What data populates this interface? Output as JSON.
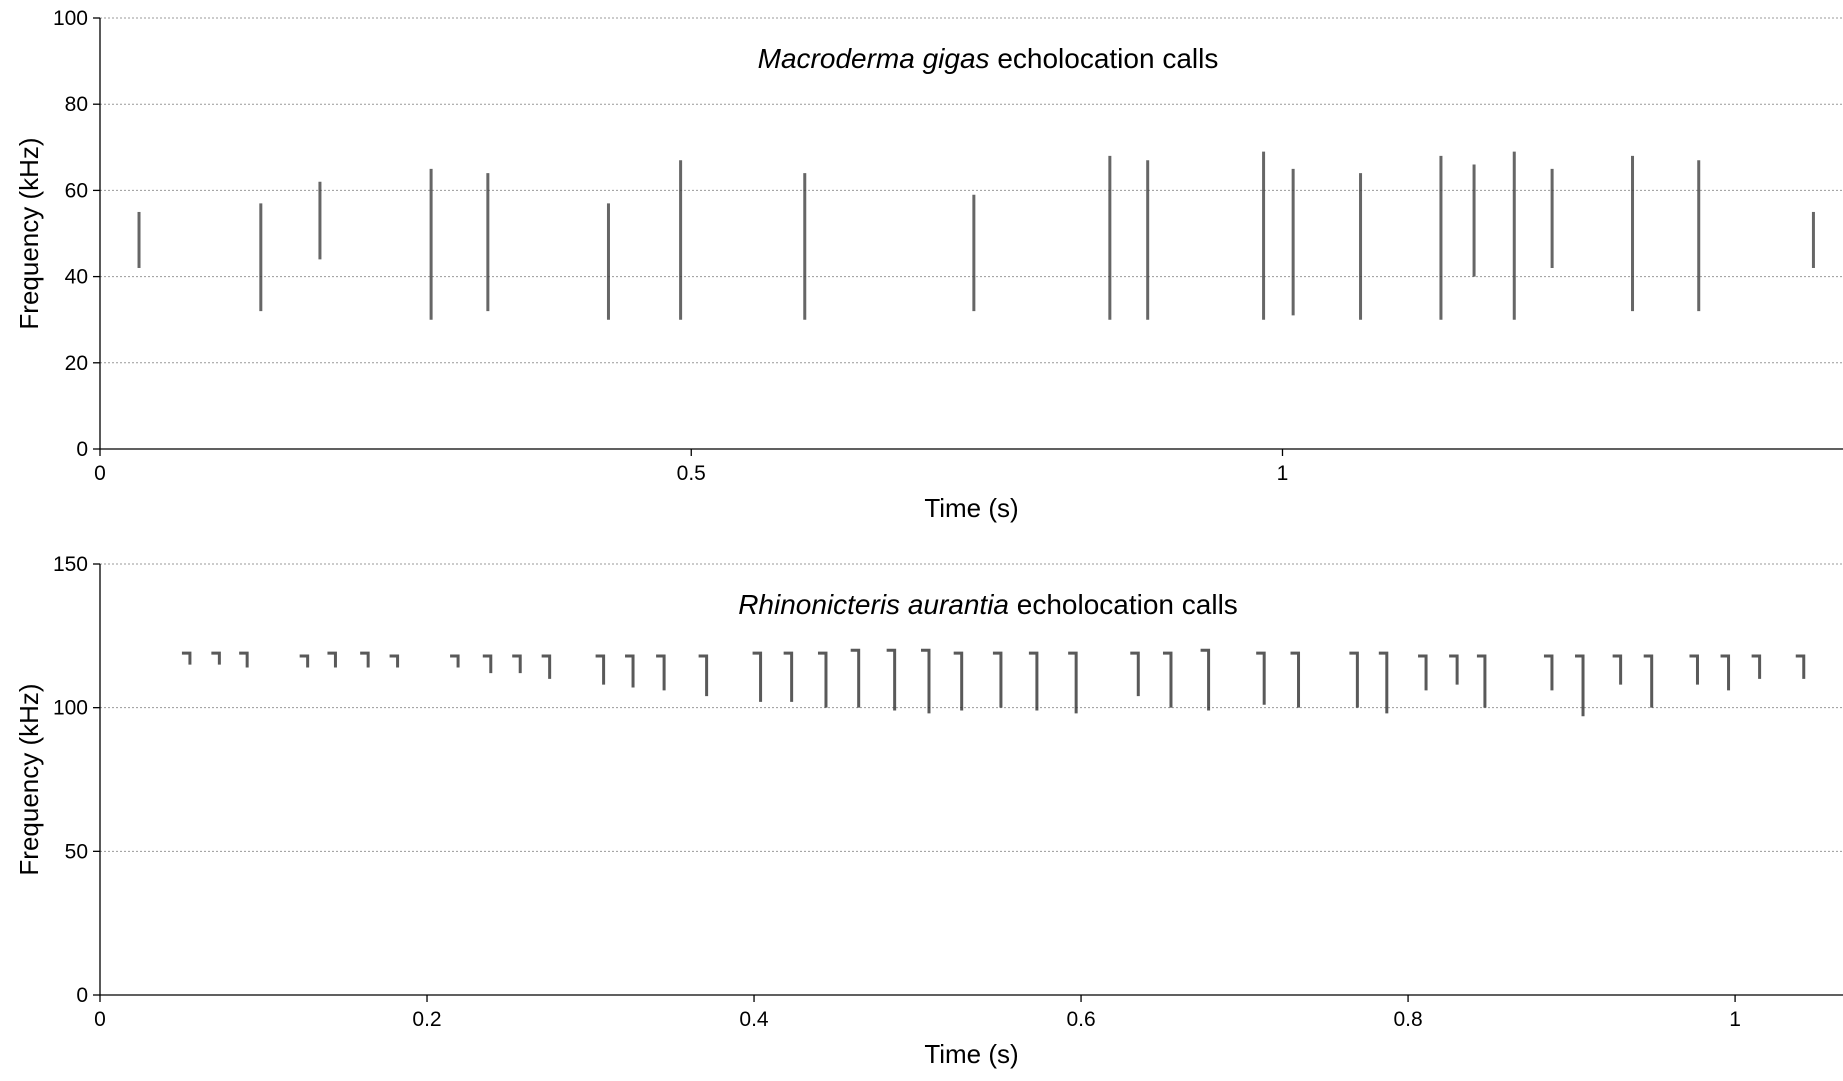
{
  "chart_data": [
    {
      "type": "spectrogram",
      "title": {
        "species": "Macroderma gigas",
        "text": "echolocation calls"
      },
      "xlabel": "Time (s)",
      "ylabel": "Frequency (kHz)",
      "xlim": [
        0,
        1.474
      ],
      "ylim": [
        0,
        100
      ],
      "xticks": [
        0,
        0.5,
        1
      ],
      "yticks": [
        0,
        20,
        40,
        60,
        80,
        100
      ],
      "grid": true,
      "color": "#333333",
      "x": [
        0.033,
        0.136,
        0.186,
        0.28,
        0.328,
        0.43,
        0.491,
        0.596,
        0.739,
        0.854,
        0.886,
        0.984,
        1.009,
        1.066,
        1.134,
        1.162,
        1.196,
        1.228,
        1.296,
        1.352,
        1.449
      ],
      "values": [
        55,
        57,
        62,
        65,
        64,
        57,
        67,
        64,
        59,
        68,
        67,
        69,
        65,
        64,
        68,
        66,
        69,
        65,
        68,
        67,
        55
      ],
      "lower": [
        42,
        32,
        44,
        30,
        32,
        30,
        30,
        30,
        32,
        30,
        30,
        30,
        31,
        30,
        30,
        40,
        30,
        42,
        32,
        32,
        42
      ]
    },
    {
      "type": "spectrogram",
      "title": {
        "species": "Rhinonicteris aurantia",
        "text": "echolocation calls"
      },
      "xlabel": "Time (s)",
      "ylabel": "Frequency (kHz)",
      "xlim": [
        0,
        1.066
      ],
      "ylim": [
        0,
        150
      ],
      "xticks": [
        0,
        0.2,
        0.4,
        0.6,
        0.8,
        1
      ],
      "yticks": [
        0,
        50,
        100,
        150
      ],
      "grid": true,
      "color": "#222222",
      "x": [
        0.055,
        0.073,
        0.09,
        0.127,
        0.144,
        0.164,
        0.182,
        0.219,
        0.239,
        0.257,
        0.275,
        0.308,
        0.326,
        0.345,
        0.371,
        0.404,
        0.423,
        0.444,
        0.464,
        0.486,
        0.507,
        0.527,
        0.551,
        0.573,
        0.597,
        0.635,
        0.655,
        0.678,
        0.712,
        0.733,
        0.769,
        0.787,
        0.811,
        0.83,
        0.847,
        0.888,
        0.907,
        0.93,
        0.949,
        0.977,
        0.996,
        1.015,
        1.042
      ],
      "values": [
        119,
        119,
        119,
        118,
        119,
        119,
        118,
        118,
        118,
        118,
        118,
        118,
        118,
        118,
        118,
        119,
        119,
        119,
        120,
        120,
        120,
        119,
        119,
        119,
        119,
        119,
        119,
        120,
        119,
        119,
        119,
        119,
        118,
        118,
        118,
        118,
        118,
        118,
        118,
        118,
        118,
        118,
        118
      ],
      "lower": [
        115,
        115,
        114,
        114,
        114,
        114,
        114,
        114,
        112,
        112,
        110,
        108,
        107,
        106,
        104,
        102,
        102,
        100,
        100,
        99,
        98,
        99,
        100,
        99,
        98,
        104,
        100,
        99,
        101,
        100,
        100,
        98,
        106,
        108,
        100,
        106,
        97,
        108,
        100,
        108,
        106,
        110,
        110
      ]
    }
  ]
}
